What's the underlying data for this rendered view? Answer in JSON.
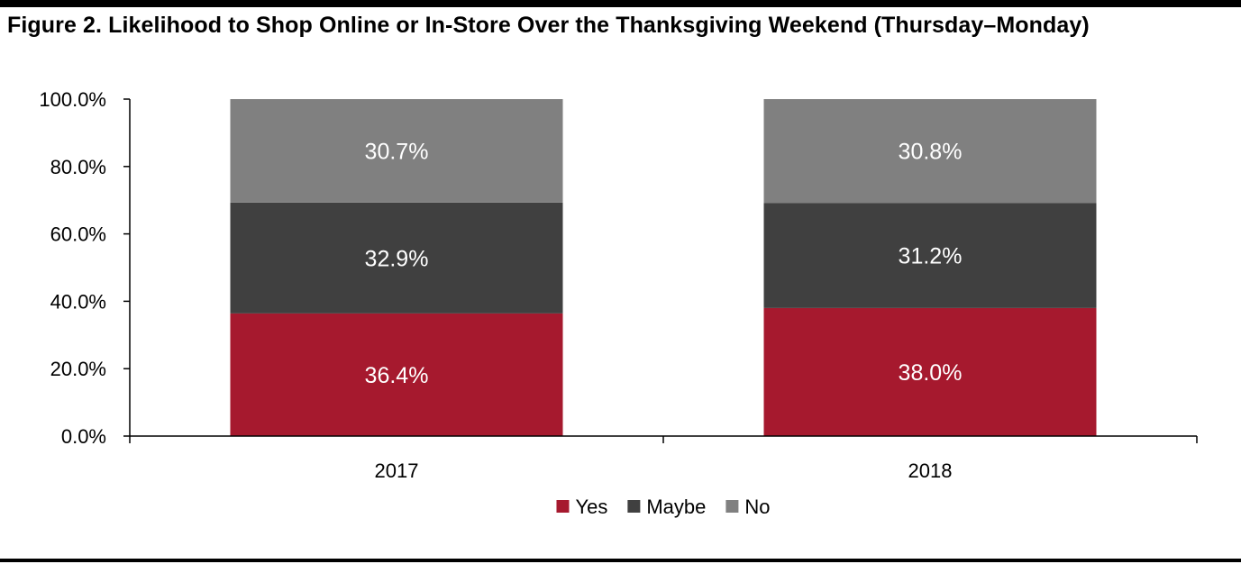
{
  "title": "Figure 2. Likelihood to Shop Online or In-Store Over the Thanksgiving Weekend (Thursday–Monday)",
  "chart_data": {
    "type": "bar",
    "stacked": true,
    "categories": [
      "2017",
      "2018"
    ],
    "series": [
      {
        "name": "Yes",
        "values": [
          36.4,
          38.0
        ],
        "labels": [
          "36.4%",
          "38.0%"
        ],
        "color": "#a6192e"
      },
      {
        "name": "Maybe",
        "values": [
          32.9,
          31.2
        ],
        "labels": [
          "32.9%",
          "31.2%"
        ],
        "color": "#404040"
      },
      {
        "name": "No",
        "values": [
          30.7,
          30.8
        ],
        "labels": [
          "30.7%",
          "30.8%"
        ],
        "color": "#808080"
      }
    ],
    "ylim": [
      0,
      100
    ],
    "yticks": [
      0,
      20,
      40,
      60,
      80,
      100
    ],
    "ytick_labels": [
      "0.0%",
      "20.0%",
      "40.0%",
      "60.0%",
      "80.0%",
      "100.0%"
    ],
    "grid": false,
    "legend_position": "bottom"
  }
}
